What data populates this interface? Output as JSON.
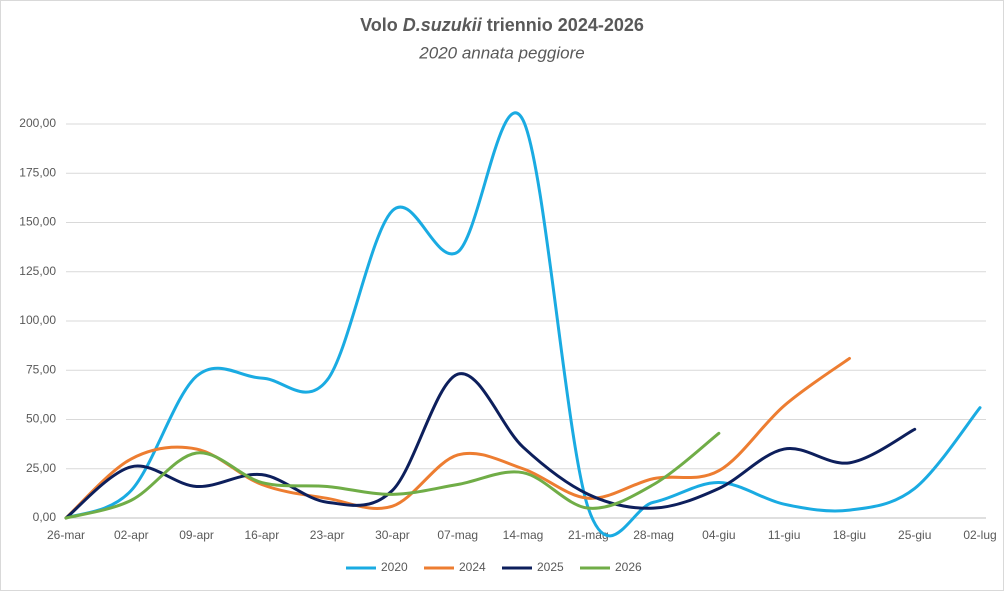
{
  "chart_data": {
    "type": "line",
    "title": [
      "Volo",
      "D.suzukii",
      "triennio 2024-2026"
    ],
    "subtitle": "2020 annata peggiore",
    "categories": [
      "26-mar",
      "02-apr",
      "09-apr",
      "16-apr",
      "23-apr",
      "30-apr",
      "07-mag",
      "14-mag",
      "21-mag",
      "28-mag",
      "04-giu",
      "11-giu",
      "18-giu",
      "25-giu",
      "02-lug"
    ],
    "series": [
      {
        "name": "2020",
        "color": "#1aabe2",
        "values": [
          0,
          14,
          72,
          71,
          70,
          156,
          135,
          202,
          5,
          8,
          18,
          7,
          4,
          15,
          56
        ]
      },
      {
        "name": "2024",
        "color": "#ed7d31",
        "values": [
          0,
          30,
          35,
          17,
          10,
          6,
          32,
          25,
          10,
          20,
          24,
          57,
          81,
          null,
          null
        ]
      },
      {
        "name": "2025",
        "color": "#0d1f5c",
        "values": [
          0,
          26,
          16,
          22,
          8,
          14,
          73,
          36,
          12,
          5,
          15,
          35,
          28,
          45,
          null
        ]
      },
      {
        "name": "2026",
        "color": "#70ad47",
        "values": [
          0,
          9,
          33,
          18,
          16,
          12,
          17,
          23,
          5,
          17,
          43,
          null,
          null,
          null,
          null
        ]
      }
    ],
    "ylim": [
      0,
      200
    ],
    "yticks": [
      {
        "value": 0,
        "label": "0,00"
      },
      {
        "value": 25,
        "label": "25,00"
      },
      {
        "value": 50,
        "label": "50,00"
      },
      {
        "value": 75,
        "label": "75,00"
      },
      {
        "value": 100,
        "label": "100,00"
      },
      {
        "value": 125,
        "label": "125,00"
      },
      {
        "value": 150,
        "label": "150,00"
      },
      {
        "value": 175,
        "label": "175,00"
      },
      {
        "value": 200,
        "label": "200,00"
      }
    ],
    "grid": true,
    "legend": "bottom"
  }
}
